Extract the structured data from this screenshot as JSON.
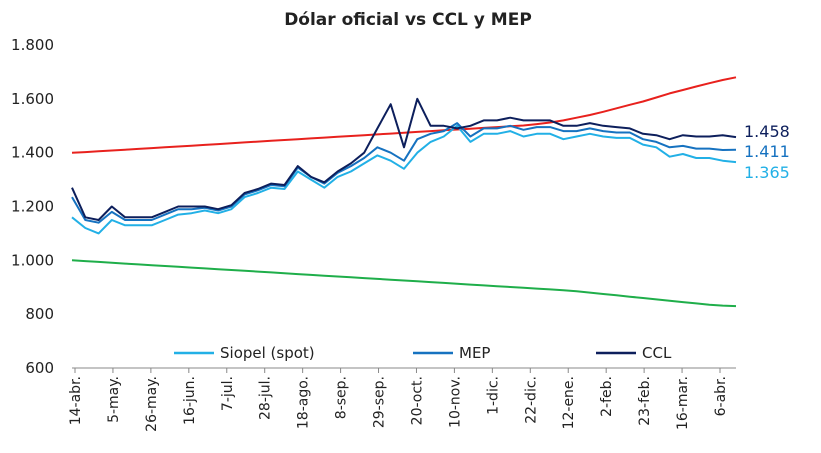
{
  "chart_data": {
    "type": "line",
    "title": "Dólar oficial vs CCL y MEP",
    "xlabel": "",
    "ylabel": "",
    "ylim": [
      600,
      1800
    ],
    "yticks": [
      "1.800",
      "1.600",
      "1.400",
      "1.200",
      "1.000",
      "800",
      "600"
    ],
    "ytick_values": [
      1800,
      1600,
      1400,
      1200,
      1000,
      800,
      600
    ],
    "xticks": [
      "14-abr.",
      "5-may.",
      "26-may.",
      "16-jun.",
      "7-jul.",
      "28-jul.",
      "18-ago.",
      "8-sep.",
      "29-sep.",
      "20-oct.",
      "10-nov.",
      "1-dic.",
      "22-dic.",
      "12-ene.",
      "2-feb.",
      "23-feb.",
      "16-mar.",
      "6-abr."
    ],
    "grid": false,
    "legend": "bottom",
    "series": [
      {
        "name": "Siopel (spot)",
        "color": "#22b0e6",
        "end_label": "1.365",
        "values": [
          1160,
          1120,
          1100,
          1150,
          1130,
          1130,
          1130,
          1150,
          1170,
          1175,
          1185,
          1175,
          1190,
          1235,
          1250,
          1270,
          1265,
          1330,
          1300,
          1270,
          1310,
          1330,
          1360,
          1390,
          1370,
          1340,
          1400,
          1440,
          1460,
          1500,
          1440,
          1470,
          1470,
          1480,
          1460,
          1470,
          1470,
          1450,
          1460,
          1470,
          1460,
          1455,
          1455,
          1430,
          1420,
          1385,
          1395,
          1380,
          1380,
          1370,
          1365
        ]
      },
      {
        "name": "MEP",
        "color": "#1672c0",
        "end_label": "1.411",
        "values": [
          1235,
          1150,
          1140,
          1180,
          1150,
          1150,
          1150,
          1170,
          1190,
          1190,
          1195,
          1185,
          1200,
          1245,
          1260,
          1280,
          1275,
          1345,
          1310,
          1285,
          1325,
          1350,
          1380,
          1420,
          1400,
          1370,
          1450,
          1470,
          1480,
          1510,
          1460,
          1490,
          1490,
          1500,
          1485,
          1495,
          1495,
          1480,
          1480,
          1490,
          1480,
          1475,
          1475,
          1450,
          1440,
          1420,
          1425,
          1415,
          1415,
          1410,
          1411
        ]
      },
      {
        "name": "CCL",
        "color": "#0d1f5c",
        "end_label": "1.458",
        "values": [
          1270,
          1160,
          1150,
          1200,
          1160,
          1160,
          1160,
          1180,
          1200,
          1200,
          1200,
          1190,
          1205,
          1250,
          1265,
          1285,
          1280,
          1350,
          1310,
          1290,
          1330,
          1360,
          1400,
          1490,
          1580,
          1420,
          1600,
          1500,
          1500,
          1490,
          1500,
          1520,
          1520,
          1530,
          1520,
          1520,
          1520,
          1500,
          1500,
          1510,
          1500,
          1495,
          1490,
          1470,
          1465,
          1450,
          1465,
          1460,
          1460,
          1465,
          1458
        ]
      },
      {
        "name": "",
        "color": "#e8211d",
        "values": [
          1400,
          1402,
          1405,
          1408,
          1411,
          1414,
          1417,
          1420,
          1423,
          1426,
          1429,
          1432,
          1435,
          1438,
          1441,
          1444,
          1447,
          1450,
          1453,
          1456,
          1459,
          1462,
          1465,
          1468,
          1471,
          1474,
          1477,
          1480,
          1483,
          1486,
          1489,
          1492,
          1495,
          1498,
          1501,
          1506,
          1512,
          1520,
          1530,
          1540,
          1552,
          1565,
          1578,
          1590,
          1605,
          1620,
          1633,
          1646,
          1658,
          1670,
          1680
        ]
      },
      {
        "name": "",
        "color": "#1fae4a",
        "values": [
          1000,
          997,
          994,
          991,
          988,
          985,
          982,
          979,
          976,
          973,
          970,
          967,
          964,
          961,
          958,
          955,
          952,
          949,
          946,
          943,
          940,
          937,
          934,
          931,
          928,
          925,
          922,
          919,
          916,
          913,
          910,
          907,
          904,
          901,
          898,
          895,
          892,
          889,
          885,
          880,
          875,
          870,
          865,
          860,
          855,
          850,
          845,
          840,
          835,
          832,
          830
        ]
      }
    ]
  }
}
